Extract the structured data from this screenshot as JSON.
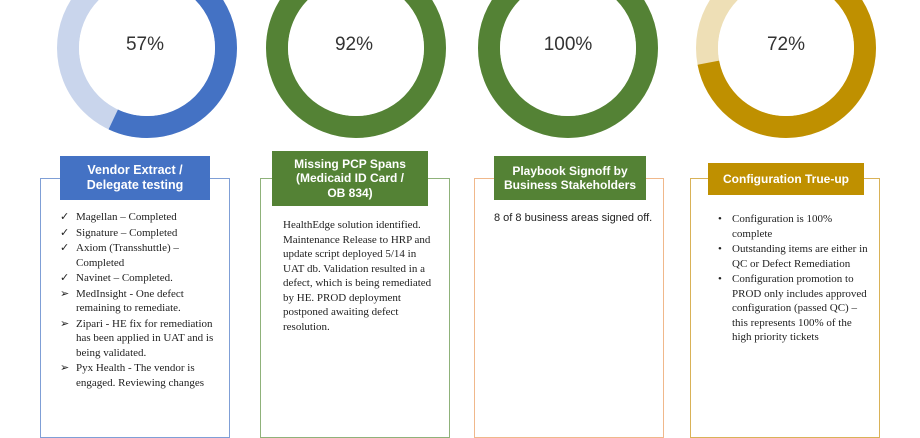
{
  "chart_data": [
    {
      "type": "pie",
      "value": 57,
      "label": "57%",
      "color": "#4472c4",
      "title": "Vendor Extract / Delegate testing"
    },
    {
      "type": "pie",
      "value": 92,
      "label": "92%",
      "color": "#548235",
      "title": "Missing PCP Spans (Medicaid ID Card / OB 834)"
    },
    {
      "type": "pie",
      "value": 100,
      "label": "100%",
      "color": "#548235",
      "title": "Playbook Signoff by Business Stakeholders"
    },
    {
      "type": "pie",
      "value": 72,
      "label": "72%",
      "color": "#bf9000",
      "title": "Configuration True-up"
    }
  ],
  "cards": [
    {
      "title_line1": "Vendor Extract /",
      "title_line2": "Delegate testing",
      "items": [
        {
          "mark": "✓",
          "text": "Magellan – Completed"
        },
        {
          "mark": "✓",
          "text": "Signature – Completed"
        },
        {
          "mark": "✓",
          "text": "Axiom (Transshuttle) – Completed"
        },
        {
          "mark": "✓",
          "text": "Navinet – Completed."
        },
        {
          "mark": "➢",
          "text": "MedInsight - One defect remaining to remediate."
        },
        {
          "mark": "➢",
          "text": "Zipari - HE fix for remediation has been applied in UAT and is being validated."
        },
        {
          "mark": "➢",
          "text": "Pyx Health - The vendor is engaged. Reviewing changes"
        }
      ]
    },
    {
      "title_line1": "Missing PCP Spans",
      "title_line2": "(Medicaid ID Card /",
      "title_line3": "OB 834)",
      "text": "HealthEdge solution identified. Maintenance Release to HRP and update script deployed 5/14 in UAT db. Validation resulted in a defect, which is being remediated by HE. PROD deployment postponed awaiting defect resolution."
    },
    {
      "title_line1": "Playbook Signoff by",
      "title_line2": "Business Stakeholders",
      "text": "8 of 8 business areas signed off."
    },
    {
      "title_line1": "Configuration True-up",
      "items": [
        {
          "mark": "•",
          "text": "Configuration is 100% complete"
        },
        {
          "mark": "•",
          "text": "Outstanding items are either in QC or Defect Remediation"
        },
        {
          "mark": "•",
          "text": "Configuration promotion to PROD only includes approved configuration (passed QC) – this represents 100% of the high priority tickets"
        }
      ]
    }
  ]
}
